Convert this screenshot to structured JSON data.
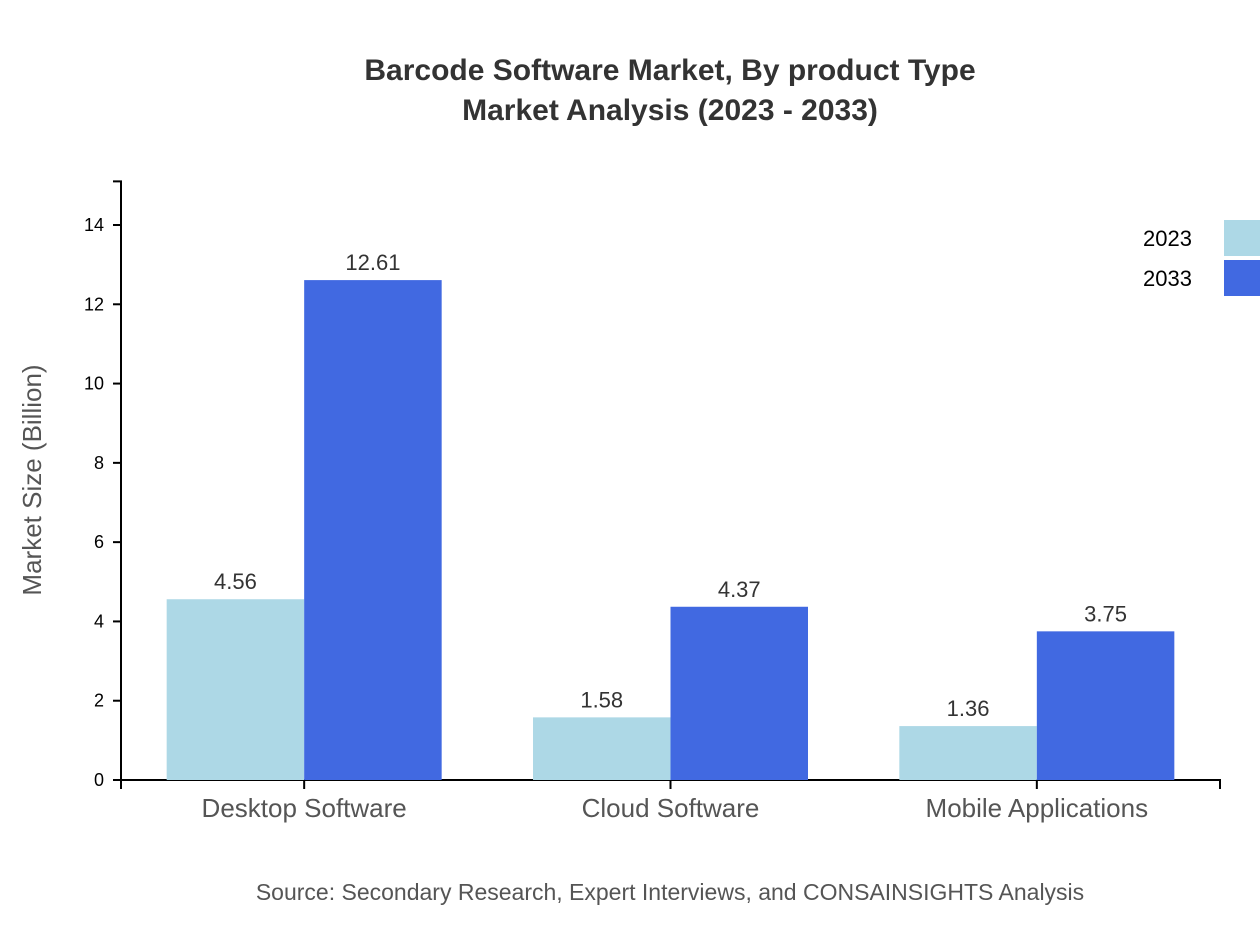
{
  "chart_data": {
    "type": "bar",
    "title": "Barcode Software Market, By product Type",
    "subtitle": "Market Analysis (2023 - 2033)",
    "xlabel": "",
    "ylabel": "Market Size (Billion)",
    "ylim": [
      0,
      15.1
    ],
    "yticks": [
      0,
      2,
      4,
      6,
      8,
      10,
      12,
      14
    ],
    "grid": false,
    "legend_position": "top-right",
    "categories": [
      "Desktop Software",
      "Cloud Software",
      "Mobile Applications"
    ],
    "series": [
      {
        "name": "2023",
        "color": "#add8e6",
        "values": [
          4.56,
          1.58,
          1.36
        ]
      },
      {
        "name": "2033",
        "color": "#4169e1",
        "values": [
          12.61,
          4.37,
          3.75
        ]
      }
    ],
    "source": "Source: Secondary Research, Expert Interviews, and CONSAINSIGHTS Analysis"
  }
}
